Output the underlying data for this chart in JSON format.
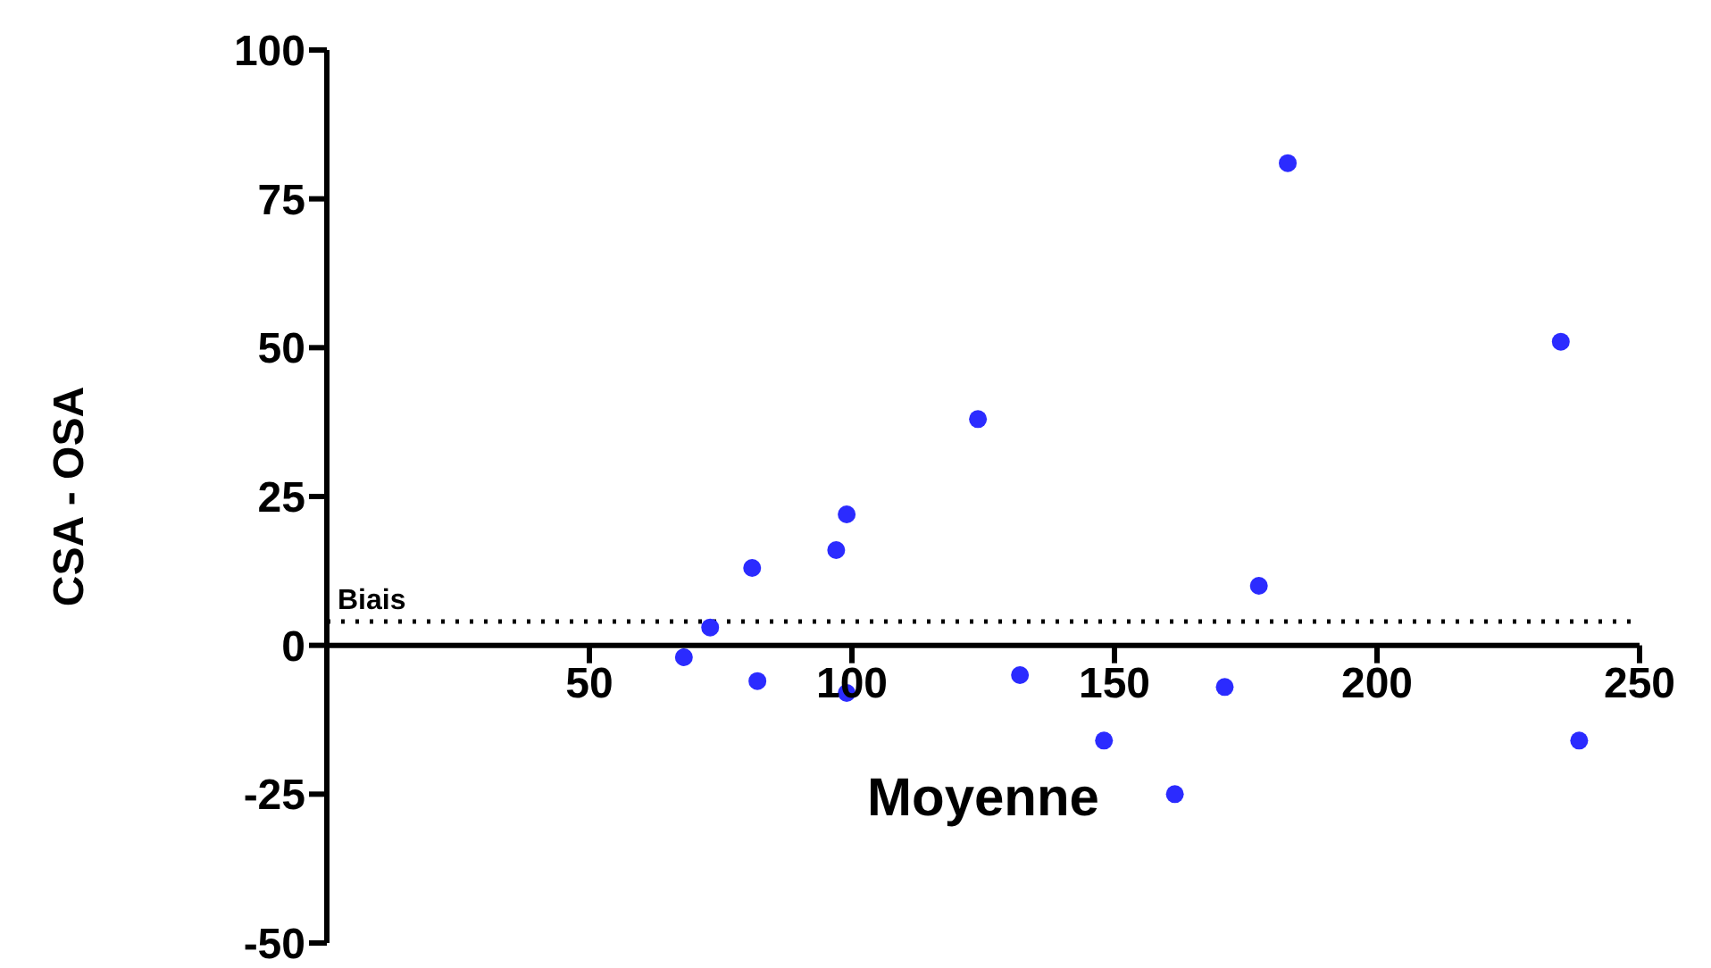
{
  "chart_data": {
    "type": "scatter",
    "xlabel": "Moyenne",
    "ylabel": "CSA - OSA",
    "x": [
      68,
      73,
      81,
      82,
      97,
      99,
      99,
      124,
      132,
      148,
      161.5,
      171,
      177.5,
      183,
      235,
      238.5
    ],
    "series": [
      {
        "color": "#2b2bff",
        "values": [
          -2,
          3,
          13,
          -6,
          16,
          22,
          -8,
          38,
          -5,
          -16,
          -25,
          -7,
          10,
          81,
          51,
          -16
        ]
      }
    ],
    "xlim": [
      0,
      250
    ],
    "xticks": [
      50,
      100,
      150,
      200,
      250
    ],
    "ylim": [
      -50,
      100
    ],
    "yticks": [
      -50,
      -25,
      0,
      25,
      50,
      75,
      100
    ],
    "ref_lines": [
      {
        "axis": "y",
        "value": 4,
        "label": "Biais",
        "line_style": "dotted",
        "color": "#000000"
      }
    ],
    "marker": "circle",
    "grid": false,
    "legend": false
  }
}
